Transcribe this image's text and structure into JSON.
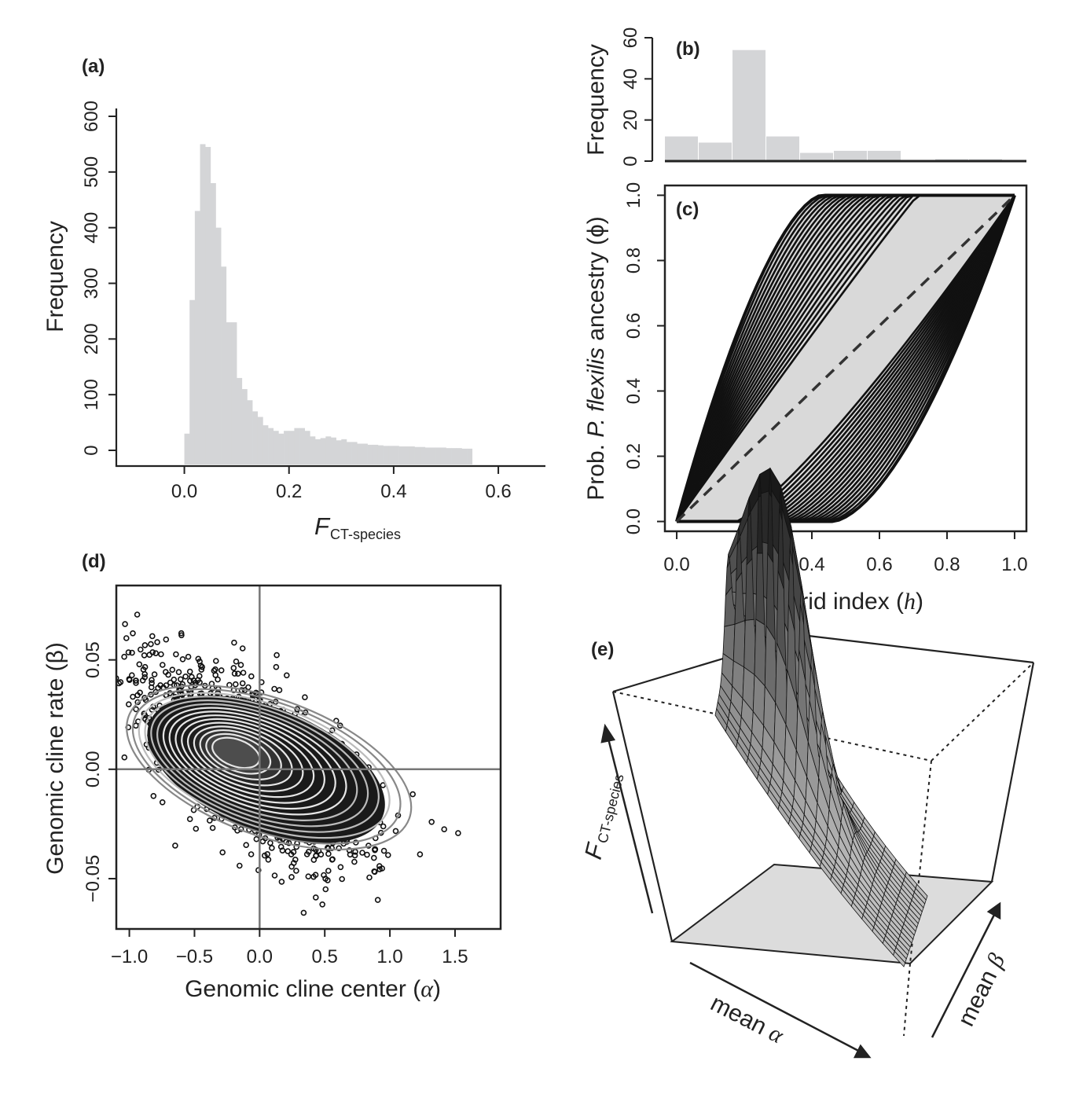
{
  "chart_data": [
    {
      "id": "a",
      "type": "bar",
      "panel_label": "(a)",
      "ylabel": "Frequency",
      "xlabel_main": "F",
      "xlabel_sub": "CT-species",
      "xlim": [
        -0.13,
        0.69
      ],
      "ylim": [
        0,
        600
      ],
      "xticks": [
        "0.0",
        "0.2",
        "0.4",
        "0.6"
      ],
      "yticks": [
        "0",
        "100",
        "200",
        "300",
        "400",
        "500",
        "600"
      ],
      "bin_width": 0.01,
      "bins_start": [
        0.0,
        0.01,
        0.02,
        0.03,
        0.04,
        0.05,
        0.06,
        0.07,
        0.08,
        0.09,
        0.1,
        0.11,
        0.12,
        0.13,
        0.14,
        0.15,
        0.16,
        0.17,
        0.18,
        0.19,
        0.2,
        0.21,
        0.22,
        0.23,
        0.24,
        0.25,
        0.26,
        0.27,
        0.28,
        0.29,
        0.3,
        0.31,
        0.32,
        0.33,
        0.34,
        0.35,
        0.36,
        0.37,
        0.38,
        0.39,
        0.4,
        0.41,
        0.42,
        0.43,
        0.44,
        0.45,
        0.46,
        0.47,
        0.48,
        0.49,
        0.5,
        0.51,
        0.52,
        0.53,
        0.54
      ],
      "values": [
        30,
        270,
        430,
        550,
        545,
        480,
        400,
        330,
        230,
        230,
        130,
        110,
        90,
        70,
        60,
        45,
        40,
        35,
        30,
        35,
        35,
        40,
        40,
        35,
        25,
        20,
        22,
        25,
        23,
        18,
        20,
        15,
        15,
        12,
        12,
        10,
        10,
        9,
        8,
        8,
        8,
        7,
        7,
        7,
        6,
        6,
        5,
        5,
        5,
        5,
        4,
        4,
        4,
        3,
        3
      ],
      "color": "#d4d5d7"
    },
    {
      "id": "b",
      "type": "bar",
      "panel_label": "(b)",
      "ylabel": "Frequency",
      "xlim": [
        -0.035,
        1.035
      ],
      "ylim": [
        0,
        60
      ],
      "yticks": [
        "0",
        "20",
        "40",
        "60"
      ],
      "bins_start": [
        0.0,
        0.1,
        0.2,
        0.3,
        0.4,
        0.5,
        0.6,
        0.7,
        0.8,
        0.9
      ],
      "bin_width": 0.1,
      "values": [
        12,
        9,
        54,
        12,
        4,
        5,
        5,
        0,
        1,
        1
      ],
      "color": "#d4d5d7"
    },
    {
      "id": "c",
      "type": "line",
      "panel_label": "(c)",
      "ylabel_prefix": "Prob.",
      "ylabel_italic": "P. flexilis",
      "ylabel_suffix": "ancestry (ϕ)",
      "xlabel_main": "Hybrid index (",
      "xlabel_italic": "h",
      "xlabel_end": ")",
      "xlim": [
        -0.035,
        1.035
      ],
      "ylim": [
        -0.03,
        1.03
      ],
      "xticks": [
        "0.0",
        "0.2",
        "0.4",
        "0.6",
        "0.8",
        "1.0"
      ],
      "yticks": [
        "0.0",
        "0.2",
        "0.4",
        "0.6",
        "0.8",
        "1.0"
      ],
      "reference_line": "dashed y = x",
      "upper_envelope_x_at_phi1": 0.43,
      "lower_envelope_x_at_phi0": 0.46,
      "fill_color": "#d9d9d9",
      "line_color": "#111111"
    },
    {
      "id": "d",
      "type": "scatter",
      "panel_label": "(d)",
      "xlabel_main": "Genomic cline center (",
      "xlabel_italic": "α",
      "xlabel_end": ")",
      "ylabel": "Genomic cline rate (β)",
      "xlim": [
        -1.1,
        1.85
      ],
      "ylim": [
        -0.073,
        0.084
      ],
      "xticks": [
        "−1.0",
        "−0.5",
        "0.0",
        "0.5",
        "1.0",
        "1.5"
      ],
      "yticks": [
        "−0.05",
        "0.00",
        "0.05"
      ],
      "reference_lines": {
        "x": 0,
        "y": 0
      },
      "density_center": {
        "x": -0.2,
        "y": 0.008
      },
      "outer_contour_extent": {
        "x": [
          -0.85,
          1.1
        ],
        "y": [
          -0.04,
          0.045
        ]
      }
    },
    {
      "id": "e",
      "type": "surface",
      "panel_label": "(e)",
      "zlabel_main": "F",
      "zlabel_sub": "CT-species",
      "xlabel_main": "mean ",
      "xlabel_italic": "α",
      "ylabel_main": "mean ",
      "ylabel_italic": "β"
    }
  ]
}
